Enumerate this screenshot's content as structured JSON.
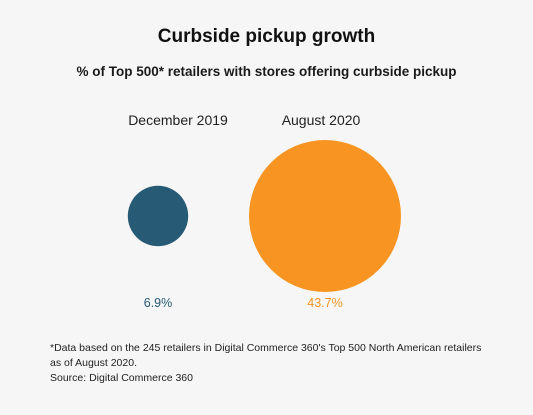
{
  "chart_data": {
    "type": "bubble",
    "title": "Curbside pickup growth",
    "subtitle": "% of Top 500* retailers with stores offering curbside pickup",
    "categories": [
      "December 2019",
      "August 2020"
    ],
    "values": [
      6.9,
      43.7
    ],
    "value_labels": [
      "6.9%",
      "43.7%"
    ],
    "colors": [
      "#275a75",
      "#f79422"
    ],
    "unit": "%",
    "grid": false,
    "legend": "none",
    "footnote": "*Data based on the 245 retailers in Digital Commerce 360's Top 500 North American retailers as of August 2020.",
    "source": "Source: Digital Commerce 360"
  }
}
